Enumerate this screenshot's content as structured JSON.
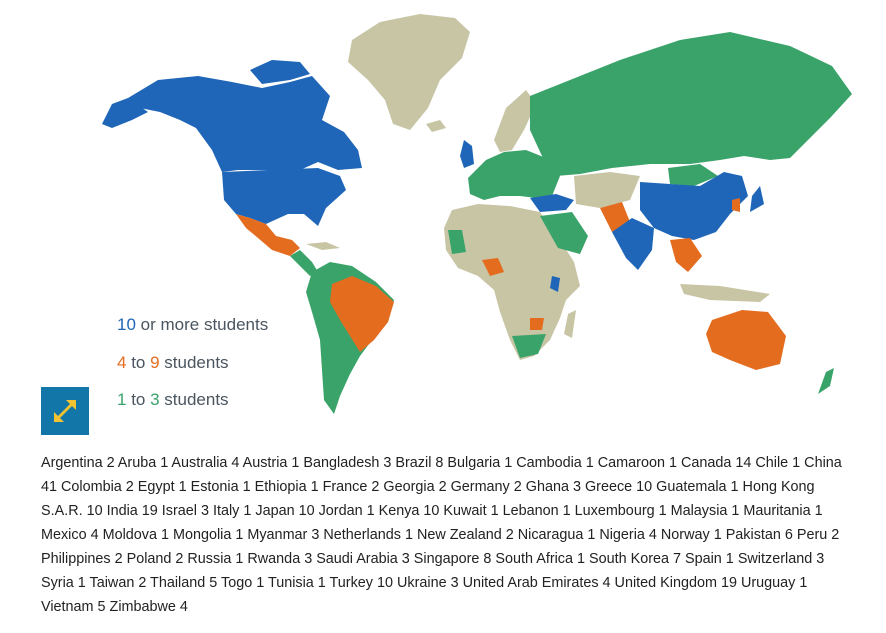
{
  "map": {
    "colors": {
      "ten_plus": "#1f66b8",
      "four_to_nine": "#e46c1f",
      "one_to_three": "#3aa36a",
      "none": "#c8c5a5"
    }
  },
  "legend": {
    "items": [
      {
        "num1": "10",
        "text": " or more students",
        "color": "#1f66b8"
      },
      {
        "num1": "4",
        "mid": " to ",
        "num2": "9",
        "text": " students",
        "color": "#e46c1f"
      },
      {
        "num1": "1",
        "mid": " to ",
        "num2": "3",
        "text": " students",
        "color": "#3aa36a"
      }
    ]
  },
  "expand_button": {
    "icon": "expand-arrows-icon",
    "color": "#1276a8",
    "arrow_color": "#f2c230"
  },
  "country_list_text": "Argentina 2 Aruba 1 Australia 4 Austria 1 Bangladesh 3 Brazil 8 Bulgaria 1 Cambodia 1 Camaroon 1 Canada 14 Chile 1 China 41 Colombia 2 Egypt 1 Estonia 1 Ethiopia 1 France 2 Georgia 2 Germany 2 Ghana 3 Greece 10 Guatemala 1 Hong Kong S.A.R. 10 India 19 Israel 3 Italy 1 Japan 10 Jordan 1 Kenya 10 Kuwait 1 Lebanon 1 Luxembourg 1 Malaysia 1 Mauritania 1 Mexico 4 Moldova 1 Mongolia 1 Myanmar 3 Netherlands 1 New Zealand 2 Nicaragua 1 Nigeria 4 Norway 1 Pakistan 6 Peru 2 Philippines 2 Poland 2 Russia 1 Rwanda 3 Saudi Arabia 3 Singapore 8 South Africa 1 South Korea 7 Spain 1 Switzerland 3 Syria 1 Taiwan 2 Thailand 5 Togo 1 Tunisia 1 Turkey 10 Ukraine 3 United Arab Emirates 4 United Kingdom 19 Uruguay 1 Vietnam 5 Zimbabwe 4"
}
